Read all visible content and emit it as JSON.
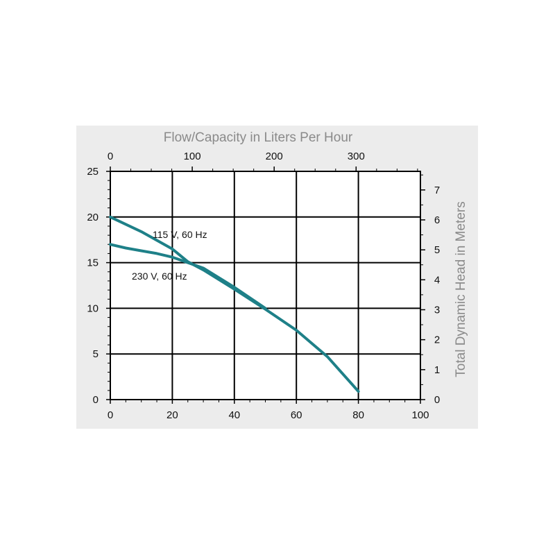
{
  "chart_data": {
    "type": "line",
    "title": "",
    "xlabel": "",
    "ylabel": "",
    "x_top_label": "Flow/Capacity in Liters Per Hour",
    "y_right_label": "Total Dynamic Head in Meters",
    "xlim": [
      0,
      100
    ],
    "ylim": [
      0,
      25
    ],
    "x_ticks": [
      "0",
      "20",
      "40",
      "60",
      "80",
      "100"
    ],
    "y_ticks": [
      "0",
      "5",
      "10",
      "15",
      "20",
      "25"
    ],
    "x_top_ticks": [
      "0",
      "100",
      "200",
      "300"
    ],
    "x_top_tick_values": [
      0,
      100,
      200,
      300
    ],
    "x_top_range": [
      0,
      378.5
    ],
    "y_right_ticks": [
      "0",
      "1",
      "2",
      "3",
      "4",
      "5",
      "6",
      "7"
    ],
    "y_right_tick_values": [
      0,
      1,
      2,
      3,
      4,
      5,
      6,
      7
    ],
    "y_right_range": [
      0,
      7.62
    ],
    "grid": true,
    "line_color": "#1e8088",
    "series": [
      {
        "name": "115 V, 60 Hz",
        "x": [
          0,
          10,
          20,
          25,
          30,
          40,
          50,
          60,
          70,
          75,
          80
        ],
        "y": [
          20,
          18.4,
          16.5,
          15.1,
          14.2,
          12.1,
          9.9,
          7.6,
          4.7,
          2.8,
          0.9
        ]
      },
      {
        "name": "230 V, 60 Hz",
        "x": [
          0,
          5,
          10,
          15,
          20,
          25,
          30,
          40,
          50
        ],
        "y": [
          17,
          16.6,
          16.3,
          16.0,
          15.6,
          15.0,
          14.4,
          12.3,
          10.0
        ]
      }
    ]
  }
}
